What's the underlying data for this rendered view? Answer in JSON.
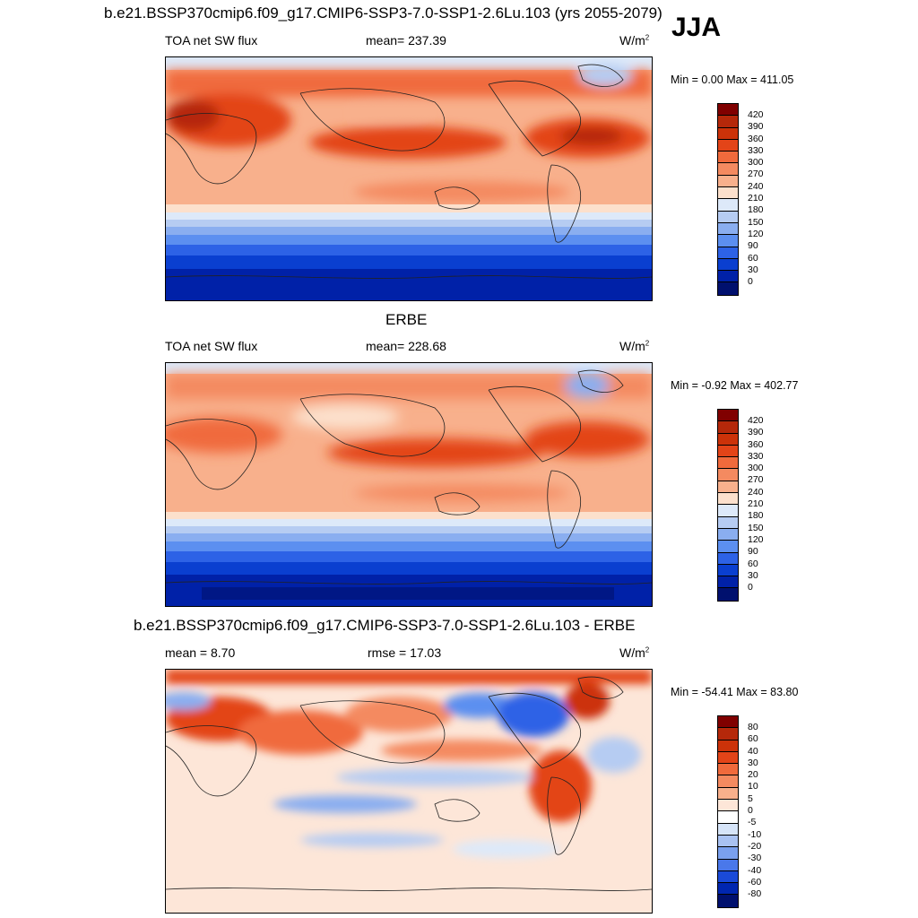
{
  "main_title": "b.e21.BSSP370cmip6.f09_g17.CMIP6-SSP3-7.0-SSP1-2.6Lu.103 (yrs 2055-2079)",
  "season": "JJA",
  "panels": [
    {
      "title": "",
      "left_label": "TOA net SW flux",
      "center_label": "mean= 237.39",
      "units": "W/m",
      "units_sup": "2",
      "minmax": "Min =   0.00 Max = 411.05",
      "levels": [
        "420",
        "390",
        "360",
        "330",
        "300",
        "270",
        "240",
        "210",
        "180",
        "150",
        "120",
        "90",
        "60",
        "30",
        "0"
      ],
      "colors": [
        "#800000",
        "#b5280a",
        "#cc3209",
        "#e34418",
        "#f06a3c",
        "#f48a60",
        "#f8b08c",
        "#fce0cc",
        "#dde9f9",
        "#b6ccf2",
        "#8aaef0",
        "#5c8ff0",
        "#2d62e6",
        "#0a3fd0",
        "#0021a8",
        "#00106e"
      ]
    },
    {
      "title": "ERBE",
      "left_label": "TOA net SW flux",
      "center_label": "mean= 228.68",
      "units": "W/m",
      "units_sup": "2",
      "minmax": "Min =  -0.92 Max = 402.77",
      "levels": [
        "420",
        "390",
        "360",
        "330",
        "300",
        "270",
        "240",
        "210",
        "180",
        "150",
        "120",
        "90",
        "60",
        "30",
        "0"
      ],
      "colors": [
        "#800000",
        "#b5280a",
        "#cc3209",
        "#e34418",
        "#f06a3c",
        "#f48a60",
        "#f8b08c",
        "#fce0cc",
        "#dde9f9",
        "#b6ccf2",
        "#8aaef0",
        "#5c8ff0",
        "#2d62e6",
        "#0a3fd0",
        "#0021a8",
        "#00106e"
      ]
    },
    {
      "title": "b.e21.BSSP370cmip6.f09_g17.CMIP6-SSP3-7.0-SSP1-2.6Lu.103 - ERBE",
      "left_label": "mean =   8.70",
      "center_label": "rmse =  17.03",
      "units": "W/m",
      "units_sup": "2",
      "minmax": "Min = -54.41 Max =  83.80",
      "levels": [
        "80",
        "60",
        "40",
        "30",
        "20",
        "10",
        "5",
        "0",
        "-5",
        "-10",
        "-20",
        "-30",
        "-40",
        "-60",
        "-80"
      ],
      "colors": [
        "#800000",
        "#b5280a",
        "#cc3209",
        "#e34418",
        "#f06a3c",
        "#f48a60",
        "#f8b08c",
        "#fde6d8",
        "#ffffff",
        "#d6e4f8",
        "#a9c2f2",
        "#7aa0ee",
        "#4a78ea",
        "#1a4ad8",
        "#0026b0",
        "#00106e"
      ]
    }
  ]
}
